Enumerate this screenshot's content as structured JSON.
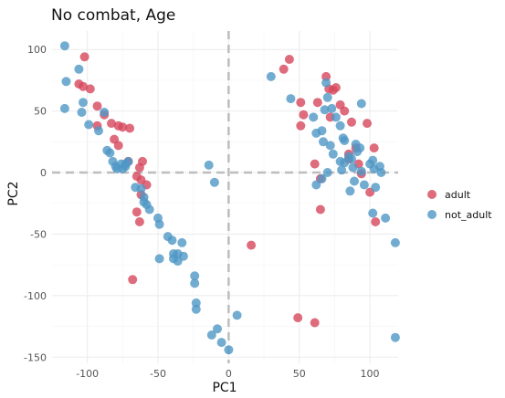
{
  "chart_data": {
    "type": "scatter",
    "title": "No combat, Age",
    "xlabel": "PC1",
    "ylabel": "PC2",
    "xlim": [
      -125,
      120
    ],
    "ylim": [
      -155,
      115
    ],
    "x_ticks": [
      -100,
      -50,
      0,
      50,
      100
    ],
    "y_ticks": [
      -150,
      -100,
      -50,
      0,
      50,
      100
    ],
    "reference_lines": {
      "x": 0,
      "y": 0
    },
    "grid": true,
    "legend_position": "right",
    "series": [
      {
        "name": "adult",
        "color": "#D6475C",
        "points": [
          [
            -102,
            94
          ],
          [
            -106,
            72
          ],
          [
            -103,
            70
          ],
          [
            -98,
            68
          ],
          [
            -93,
            54
          ],
          [
            -93,
            38
          ],
          [
            -88,
            47
          ],
          [
            -83,
            40
          ],
          [
            -78,
            38
          ],
          [
            -75,
            37
          ],
          [
            -70,
            36
          ],
          [
            -81,
            27
          ],
          [
            -78,
            22
          ],
          [
            -71,
            9
          ],
          [
            -61,
            9
          ],
          [
            -63,
            4
          ],
          [
            -65,
            -3
          ],
          [
            -62,
            -6
          ],
          [
            -58,
            -10
          ],
          [
            -62,
            -18
          ],
          [
            -65,
            -32
          ],
          [
            -63,
            -40
          ],
          [
            -68,
            -87
          ],
          [
            39,
            84
          ],
          [
            43,
            92
          ],
          [
            51,
            57
          ],
          [
            51,
            38
          ],
          [
            53,
            47
          ],
          [
            63,
            57
          ],
          [
            69,
            78
          ],
          [
            71,
            68
          ],
          [
            72,
            45
          ],
          [
            74,
            67
          ],
          [
            76,
            69
          ],
          [
            79,
            55
          ],
          [
            82,
            50
          ],
          [
            85,
            15
          ],
          [
            85,
            11
          ],
          [
            87,
            41
          ],
          [
            90,
            20
          ],
          [
            92,
            7
          ],
          [
            94,
            -1
          ],
          [
            98,
            40
          ],
          [
            100,
            -16
          ],
          [
            103,
            20
          ],
          [
            104,
            -40
          ],
          [
            61,
            7
          ],
          [
            65,
            -5
          ],
          [
            16,
            -59
          ],
          [
            49,
            -118
          ],
          [
            61,
            -122
          ],
          [
            65,
            -30
          ]
        ]
      },
      {
        "name": "not_adult",
        "color": "#4F97C6",
        "points": [
          [
            -116,
            103
          ],
          [
            -115,
            74
          ],
          [
            -116,
            52
          ],
          [
            -106,
            84
          ],
          [
            -103,
            57
          ],
          [
            -104,
            49
          ],
          [
            -99,
            39
          ],
          [
            -92,
            34
          ],
          [
            -88,
            49
          ],
          [
            -86,
            18
          ],
          [
            -84,
            16
          ],
          [
            -82,
            9
          ],
          [
            -80,
            5
          ],
          [
            -79,
            3
          ],
          [
            -76,
            7
          ],
          [
            -73,
            5
          ],
          [
            -75,
            3
          ],
          [
            -71,
            9
          ],
          [
            -66,
            -12
          ],
          [
            -62,
            -13
          ],
          [
            -60,
            -20
          ],
          [
            -60,
            -24
          ],
          [
            -58,
            -26
          ],
          [
            -56,
            -30
          ],
          [
            -50,
            -37
          ],
          [
            -49,
            -42
          ],
          [
            -43,
            -52
          ],
          [
            -49,
            -70
          ],
          [
            -40,
            -55
          ],
          [
            -39,
            -66
          ],
          [
            -39,
            -70
          ],
          [
            -36,
            -66
          ],
          [
            -36,
            -72
          ],
          [
            -33,
            -57
          ],
          [
            -32,
            -68
          ],
          [
            -24,
            -84
          ],
          [
            -24,
            -90
          ],
          [
            -23,
            -106
          ],
          [
            -23,
            -111
          ],
          [
            -14,
            6
          ],
          [
            -10,
            -8
          ],
          [
            -12,
            -132
          ],
          [
            -8,
            -127
          ],
          [
            -5,
            -138
          ],
          [
            0,
            -144
          ],
          [
            6,
            -116
          ],
          [
            30,
            78
          ],
          [
            44,
            60
          ],
          [
            60,
            45
          ],
          [
            62,
            32
          ],
          [
            66,
            34
          ],
          [
            68,
            51
          ],
          [
            69,
            73
          ],
          [
            70,
            61
          ],
          [
            73,
            52
          ],
          [
            76,
            45
          ],
          [
            79,
            38
          ],
          [
            81,
            28
          ],
          [
            82,
            26
          ],
          [
            85,
            13
          ],
          [
            87,
            11
          ],
          [
            89,
            -7
          ],
          [
            86,
            -15
          ],
          [
            90,
            23
          ],
          [
            91,
            17
          ],
          [
            93,
            20
          ],
          [
            94,
            56
          ],
          [
            96,
            -10
          ],
          [
            100,
            7
          ],
          [
            102,
            -33
          ],
          [
            102,
            10
          ],
          [
            103,
            3
          ],
          [
            104,
            -12
          ],
          [
            107,
            5
          ],
          [
            111,
            -37
          ],
          [
            118,
            -57
          ],
          [
            118,
            -134
          ],
          [
            67,
            25
          ],
          [
            72,
            22
          ],
          [
            74,
            15
          ],
          [
            79,
            9
          ],
          [
            80,
            2
          ],
          [
            82,
            8
          ],
          [
            88,
            4
          ],
          [
            94,
            1
          ],
          [
            108,
            0
          ],
          [
            70,
            0
          ],
          [
            62,
            -10
          ],
          [
            66,
            -5
          ],
          [
            -73,
            7
          ]
        ]
      }
    ]
  }
}
